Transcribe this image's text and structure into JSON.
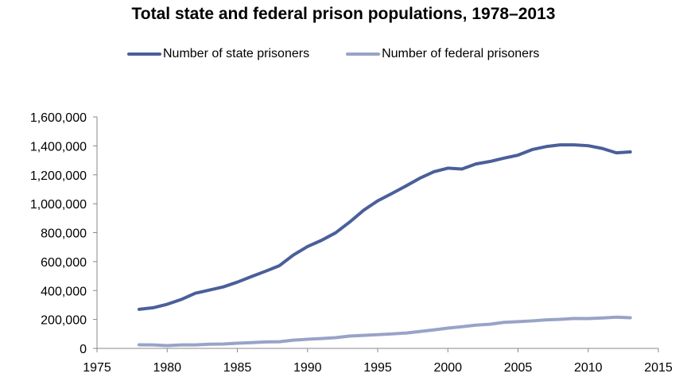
{
  "chart_data": {
    "type": "line",
    "title": "Total state and federal prison populations, 1978–2013",
    "xlabel": "",
    "ylabel": "",
    "xlim": [
      1975,
      2015
    ],
    "ylim": [
      0,
      1600000
    ],
    "x_ticks": [
      1975,
      1980,
      1985,
      1990,
      1995,
      2000,
      2005,
      2010,
      2015
    ],
    "y_ticks": [
      0,
      200000,
      400000,
      600000,
      800000,
      1000000,
      1200000,
      1400000,
      1600000
    ],
    "x_tick_labels": [
      "1975",
      "1980",
      "1985",
      "1990",
      "1995",
      "2000",
      "2005",
      "2010",
      "2015"
    ],
    "y_tick_labels": [
      "0",
      "200,000",
      "400,000",
      "600,000",
      "800,000",
      "1,000,000",
      "1,200,000",
      "1,400,000",
      "1,600,000"
    ],
    "grid": false,
    "legend_position": "top",
    "x": [
      1978,
      1979,
      1980,
      1981,
      1982,
      1983,
      1984,
      1985,
      1986,
      1987,
      1988,
      1989,
      1990,
      1991,
      1992,
      1993,
      1994,
      1995,
      1996,
      1997,
      1998,
      1999,
      2000,
      2001,
      2002,
      2003,
      2004,
      2005,
      2006,
      2007,
      2008,
      2009,
      2010,
      2011,
      2012,
      2013
    ],
    "series": [
      {
        "name": "Number of state prisoners",
        "color": "#4a5f9a",
        "values": [
          270000,
          281000,
          305000,
          338000,
          381000,
          403000,
          425000,
          458000,
          496000,
          533000,
          572000,
          646000,
          704000,
          747000,
          799000,
          873000,
          955000,
          1020000,
          1070000,
          1122000,
          1176000,
          1221000,
          1246000,
          1240000,
          1275000,
          1292000,
          1315000,
          1336000,
          1374000,
          1395000,
          1407000,
          1407000,
          1401000,
          1382000,
          1352000,
          1358000
        ]
      },
      {
        "name": "Number of federal prisoners",
        "color": "#98a3c7",
        "values": [
          25000,
          24000,
          19000,
          24000,
          24000,
          29000,
          30000,
          36000,
          40000,
          45000,
          46000,
          57000,
          63000,
          68000,
          74000,
          85000,
          90000,
          95000,
          100000,
          106000,
          117000,
          128000,
          140000,
          150000,
          161000,
          167000,
          180000,
          185000,
          190000,
          197000,
          201000,
          207000,
          206000,
          210000,
          216000,
          212000
        ]
      }
    ]
  }
}
